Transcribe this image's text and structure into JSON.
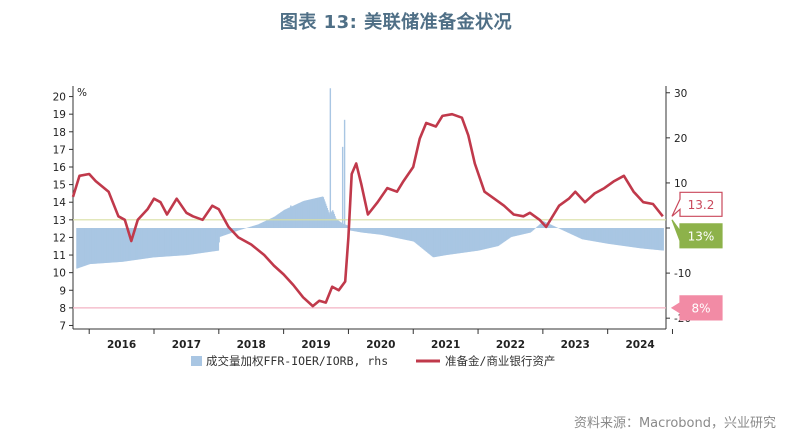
{
  "title": "图表 13: 美联储准备金状况",
  "source": "资料来源：Macrobond，兴业研究",
  "chart_data": {
    "type": "line",
    "x_range": [
      2015.75,
      2024.9
    ],
    "x_ticks": [
      "2016",
      "2017",
      "2018",
      "2019",
      "2020",
      "2021",
      "2022",
      "2023",
      "2024"
    ],
    "left_axis": {
      "unit": "%",
      "ylim": [
        6.8,
        20.6
      ],
      "ticks": [
        7,
        8,
        9,
        10,
        11,
        12,
        13,
        14,
        15,
        16,
        17,
        18,
        19,
        20
      ]
    },
    "right_axis": {
      "ylim": [
        -22.4,
        31.5
      ],
      "ticks": [
        -20,
        -10,
        0,
        10,
        20,
        30
      ],
      "tick_labels": [
        "-20",
        "-10",
        "",
        "10",
        "20",
        "30"
      ]
    },
    "series": [
      {
        "name": "成交量加权FFR-IOER/IORB, rhs",
        "kind": "bar",
        "axis": "right",
        "color": "#a9c6e3",
        "x": [
          2015.8,
          2016.0,
          2016.5,
          2016.99,
          2017.0,
          2017.5,
          2017.99,
          2018.0,
          2018.3,
          2018.6,
          2018.85,
          2019.0,
          2019.3,
          2019.6,
          2019.7,
          2019.75,
          2019.8,
          2019.9,
          2019.99,
          2020.0,
          2020.2,
          2020.5,
          2021.0,
          2021.3,
          2021.5,
          2022.0,
          2022.3,
          2022.5,
          2022.8,
          2023.0,
          2023.3,
          2023.6,
          2024.0,
          2024.5,
          2024.85
        ],
        "values": [
          -9.0,
          -8.0,
          -7.5,
          -6.5,
          -6.5,
          -6.0,
          -5.0,
          -2.0,
          -0.5,
          0.8,
          2.5,
          4.0,
          6.0,
          7.0,
          3.0,
          4.0,
          2.0,
          1.0,
          0.5,
          -0.5,
          -1.0,
          -1.5,
          -3.0,
          -6.5,
          -6.0,
          -5.0,
          -4.0,
          -2.0,
          -1.0,
          1.5,
          -0.5,
          -2.5,
          -3.5,
          -4.5,
          -5.0
        ],
        "spikes": [
          {
            "x": 2019.71,
            "value": 31.0
          },
          {
            "x": 2019.93,
            "value": 24.0
          },
          {
            "x": 2019.9,
            "value": 18.0
          },
          {
            "x": 2019.1,
            "value": 5.0
          }
        ]
      },
      {
        "name": "准备金/商业银行资产",
        "kind": "line",
        "axis": "left",
        "color": "#c0394b",
        "x": [
          2015.75,
          2015.85,
          2016.0,
          2016.1,
          2016.3,
          2016.45,
          2016.55,
          2016.65,
          2016.75,
          2016.9,
          2017.0,
          2017.1,
          2017.2,
          2017.35,
          2017.5,
          2017.6,
          2017.75,
          2017.9,
          2018.0,
          2018.15,
          2018.3,
          2018.5,
          2018.7,
          2018.85,
          2019.0,
          2019.15,
          2019.3,
          2019.45,
          2019.55,
          2019.65,
          2019.75,
          2019.85,
          2019.95,
          2020.0,
          2020.05,
          2020.12,
          2020.2,
          2020.3,
          2020.45,
          2020.6,
          2020.75,
          2020.85,
          2021.0,
          2021.1,
          2021.2,
          2021.35,
          2021.45,
          2021.6,
          2021.75,
          2021.85,
          2021.95,
          2022.1,
          2022.25,
          2022.4,
          2022.55,
          2022.7,
          2022.8,
          2022.95,
          2023.05,
          2023.15,
          2023.25,
          2023.4,
          2023.5,
          2023.65,
          2023.8,
          2023.95,
          2024.1,
          2024.25,
          2024.4,
          2024.55,
          2024.7,
          2024.85
        ],
        "values": [
          14.3,
          15.5,
          15.6,
          15.2,
          14.6,
          13.2,
          13.0,
          11.8,
          13.0,
          13.6,
          14.2,
          14.0,
          13.3,
          14.2,
          13.4,
          13.2,
          13.0,
          13.8,
          13.6,
          12.6,
          12.0,
          11.6,
          11.0,
          10.4,
          9.9,
          9.3,
          8.6,
          8.1,
          8.4,
          8.3,
          9.2,
          9.0,
          9.5,
          12.0,
          15.6,
          16.2,
          15.0,
          13.3,
          14.0,
          14.8,
          14.6,
          15.2,
          16.0,
          17.6,
          18.5,
          18.3,
          18.9,
          19.0,
          18.8,
          17.8,
          16.2,
          14.6,
          14.2,
          13.8,
          13.3,
          13.2,
          13.4,
          13.0,
          12.6,
          13.2,
          13.8,
          14.2,
          14.6,
          14.0,
          14.5,
          14.8,
          15.2,
          15.5,
          14.6,
          14.0,
          13.9,
          13.2
        ]
      }
    ],
    "reference_lines": [
      {
        "axis": "left",
        "value": 13,
        "color": "#d9dfa4",
        "label": "13%"
      },
      {
        "axis": "left",
        "value": 8,
        "color": "#f3b3c4",
        "label": "8%"
      }
    ],
    "callouts": [
      {
        "label": "13.2",
        "value": 13.2,
        "border": "#c9485b",
        "text_color": "#c9485b",
        "fill": "#ffffff"
      },
      {
        "label": "13%",
        "value": 13,
        "fill": "#8db24a",
        "text_color": "#ffffff"
      },
      {
        "label": "8%",
        "value": 8,
        "fill": "#f28ba5",
        "text_color": "#ffffff"
      }
    ],
    "legend_position": "bottom"
  }
}
